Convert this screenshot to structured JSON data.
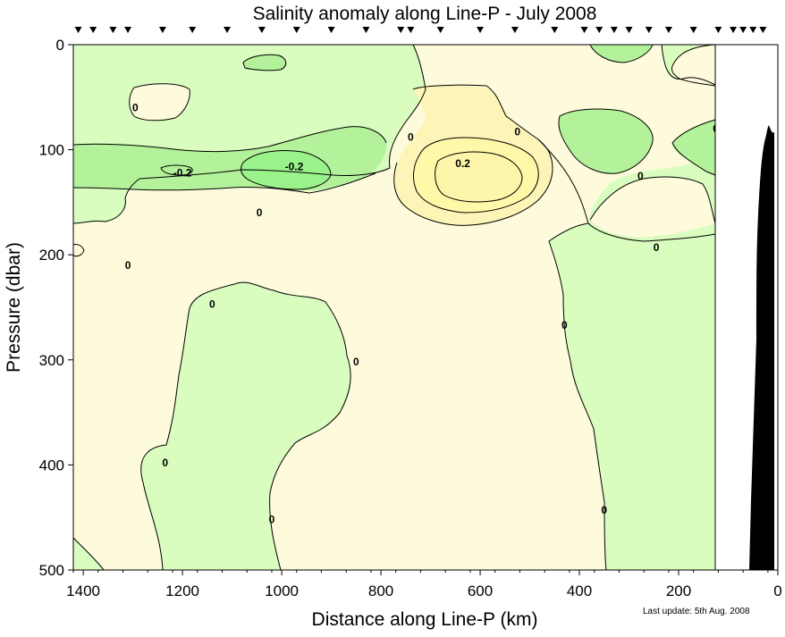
{
  "chart_data": {
    "type": "contour",
    "title": "Salinity anomaly along Line-P - July 2008",
    "xlabel": "Distance along Line-P (km)",
    "ylabel": "Pressure (dbar)",
    "footnote": "Last update: 5th Aug. 2008",
    "xlim": [
      1420,
      0
    ],
    "ylim": [
      0,
      500
    ],
    "x_ticks": [
      1400,
      1200,
      1000,
      800,
      600,
      400,
      200,
      0
    ],
    "y_ticks": [
      0,
      100,
      200,
      300,
      400,
      500
    ],
    "contour_levels": [
      -0.2,
      0,
      0.2
    ],
    "colors": {
      "negative_strong": "#99f28a",
      "negative": "#b3f29b",
      "near_zero_negative": "#d9fcbf",
      "near_zero_positive": "#fdfbdc",
      "positive": "#fdf5b8",
      "positive_strong": "#fdf9a8",
      "bathymetry": "#000000",
      "no_data": "#ffffff"
    },
    "station_markers_km": [
      1410,
      1380,
      1340,
      1310,
      1240,
      1180,
      1110,
      1040,
      970,
      900,
      830,
      760,
      740,
      680,
      600,
      530,
      450,
      390,
      360,
      330,
      300,
      260,
      220,
      170,
      120,
      90,
      70,
      50,
      30
    ],
    "data_limit_km": 125,
    "features": [
      {
        "label": "-0.2",
        "x": 1200,
        "y": 122
      },
      {
        "label": "-0.2",
        "x": 975,
        "y": 116
      },
      {
        "label": "0.2",
        "x": 635,
        "y": 113
      },
      {
        "label": "0",
        "x": 1295,
        "y": 60
      },
      {
        "label": "0",
        "x": 740,
        "y": 88
      },
      {
        "label": "0",
        "x": 525,
        "y": 83
      },
      {
        "label": "0",
        "x": 277,
        "y": 125
      },
      {
        "label": "0",
        "x": 125,
        "y": 80
      },
      {
        "label": "0",
        "x": 1045,
        "y": 160
      },
      {
        "label": "0",
        "x": 1310,
        "y": 210
      },
      {
        "label": "0",
        "x": 245,
        "y": 193
      },
      {
        "label": "0",
        "x": 1140,
        "y": 247
      },
      {
        "label": "0",
        "x": 430,
        "y": 267
      },
      {
        "label": "0",
        "x": 850,
        "y": 302
      },
      {
        "label": "0",
        "x": 1235,
        "y": 398
      },
      {
        "label": "0",
        "x": 1020,
        "y": 452
      },
      {
        "label": "0",
        "x": 350,
        "y": 443
      }
    ]
  }
}
